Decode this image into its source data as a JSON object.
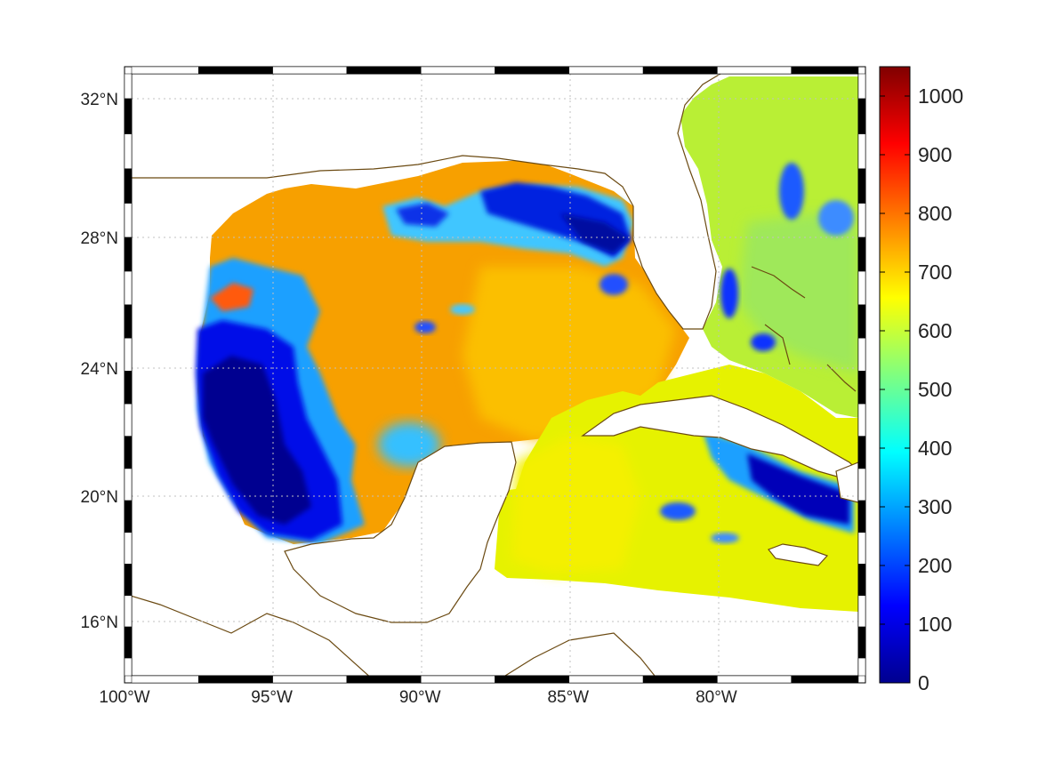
{
  "map": {
    "lon_range": [
      -100,
      -75
    ],
    "lat_range": [
      14.2,
      32.9
    ],
    "x_ticks": [
      {
        "value": -100,
        "label": "100°W"
      },
      {
        "value": -95,
        "label": "95°W"
      },
      {
        "value": -90,
        "label": "90°W"
      },
      {
        "value": -85,
        "label": "85°W"
      },
      {
        "value": -80,
        "label": "80°W"
      }
    ],
    "y_ticks": [
      {
        "value": 32,
        "label": "32°N"
      },
      {
        "value": 28,
        "label": "28°N"
      },
      {
        "value": 24,
        "label": "24°N"
      },
      {
        "value": 20,
        "label": "20°N"
      },
      {
        "value": 16,
        "label": "16°N"
      }
    ],
    "grid": "dotted",
    "coast_color": "#6b4a12",
    "frame": "black-and-white-checkered"
  },
  "colorbar": {
    "colormap": "jet",
    "range": [
      0,
      1050
    ],
    "ticks": [
      {
        "value": 0,
        "label": "0"
      },
      {
        "value": 100,
        "label": "100"
      },
      {
        "value": 200,
        "label": "200"
      },
      {
        "value": 300,
        "label": "300"
      },
      {
        "value": 400,
        "label": "400"
      },
      {
        "value": 500,
        "label": "500"
      },
      {
        "value": 600,
        "label": "600"
      },
      {
        "value": 700,
        "label": "700"
      },
      {
        "value": 800,
        "label": "800"
      },
      {
        "value": 900,
        "label": "900"
      },
      {
        "value": 1000,
        "label": "1000"
      }
    ]
  }
}
